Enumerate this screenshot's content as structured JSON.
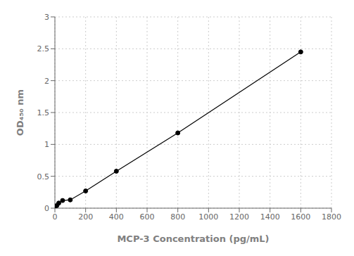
{
  "chart_data": {
    "type": "line",
    "x": [
      0,
      12.5,
      25,
      50,
      100,
      200,
      400,
      800,
      1600
    ],
    "values": [
      0.0,
      0.04,
      0.08,
      0.12,
      0.13,
      0.27,
      0.58,
      1.18,
      2.45
    ],
    "xlabel": "MCP-3 Concentration (pg/mL)",
    "ylabel": "OD₄₅₀ nm",
    "xlim": [
      0,
      1800
    ],
    "ylim": [
      0,
      3.0
    ],
    "xticks": [
      0,
      200,
      400,
      600,
      800,
      1000,
      1200,
      1400,
      1600,
      1800
    ],
    "yticks": [
      0,
      0.5,
      1,
      1.5,
      2,
      2.5,
      3
    ],
    "grid": true,
    "color": "#000000",
    "marker": "circle"
  }
}
